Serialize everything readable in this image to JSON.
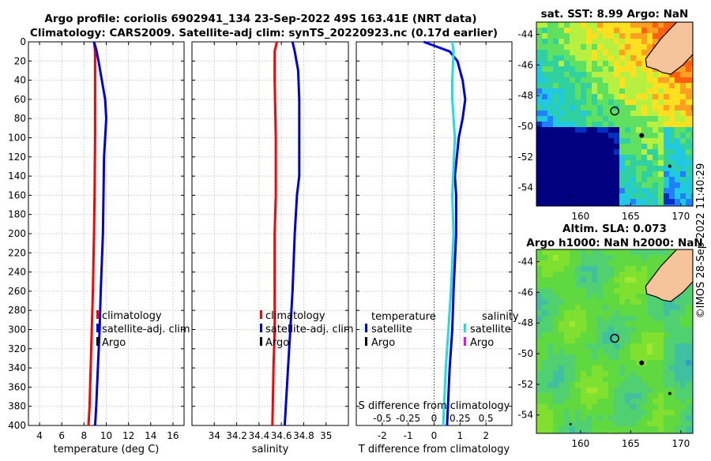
{
  "title_line1": "Argo profile: coriolis 6902941_134 23-Sep-2022 49S 163.41E (NRT data)",
  "title_line2": "Climatology: CARS2009. Satellite-adj clim: synTS_20220923.nc (0.17d earlier)",
  "copyright": "©IMOS 28-Sep-2022 11:40:29",
  "depth_ticks": [
    "0",
    "20",
    "40",
    "60",
    "80",
    "100",
    "120",
    "140",
    "160",
    "180",
    "200",
    "220",
    "240",
    "260",
    "280",
    "300",
    "320",
    "340",
    "360",
    "380",
    "400"
  ],
  "colors": {
    "climatology": "#ff0000",
    "satellite": "#0000dd",
    "argo": "#000000",
    "sal_satellite": "#22dddd",
    "sal_argo": "#ff00ff"
  },
  "chart_data": [
    {
      "type": "line",
      "id": "temperature",
      "xlabel": "temperature (deg C)",
      "xlim": [
        3,
        17
      ],
      "xticks": [
        "4",
        "6",
        "8",
        "10",
        "12",
        "14",
        "16"
      ],
      "xtick_values": [
        4,
        6,
        8,
        10,
        12,
        14,
        16
      ],
      "ylabel": "depth",
      "ylim": [
        0,
        400
      ],
      "legend": [
        "climatology",
        "satellite-adj. clim",
        "Argo"
      ],
      "series": [
        {
          "name": "climatology",
          "color": "#ff0000",
          "depth": [
            0,
            10,
            40,
            100,
            160,
            200,
            260,
            300,
            340,
            380,
            400
          ],
          "values": [
            8.9,
            9.0,
            9.0,
            9.0,
            8.95,
            8.9,
            8.8,
            8.7,
            8.6,
            8.5,
            8.4
          ]
        },
        {
          "name": "satellite-adj. clim",
          "color": "#0000dd",
          "depth": [
            0,
            8,
            20,
            40,
            60,
            80,
            100,
            120,
            160,
            200,
            260,
            300,
            340,
            380,
            400
          ],
          "values": [
            8.9,
            9.1,
            9.3,
            9.6,
            9.9,
            10.0,
            9.9,
            9.8,
            9.75,
            9.7,
            9.5,
            9.4,
            9.25,
            9.1,
            9.0
          ]
        }
      ]
    },
    {
      "type": "line",
      "id": "salinity",
      "xlabel": "salinity",
      "xlim": [
        33.8,
        35.2
      ],
      "xticks": [
        "34",
        "34.2",
        "34.4",
        "34.6",
        "34.8",
        "35"
      ],
      "xtick_values": [
        34,
        34.2,
        34.4,
        34.6,
        34.8,
        35
      ],
      "ylim": [
        0,
        400
      ],
      "legend": [
        "climatology",
        "satellite-adj. clim",
        "Argo"
      ],
      "series": [
        {
          "name": "climatology",
          "color": "#ff0000",
          "depth": [
            0,
            10,
            40,
            100,
            160,
            200,
            260,
            300,
            340,
            400
          ],
          "values": [
            34.56,
            34.54,
            34.54,
            34.55,
            34.55,
            34.54,
            34.54,
            34.54,
            34.53,
            34.52
          ]
        },
        {
          "name": "satellite-adj. clim",
          "color": "#0000dd",
          "depth": [
            0,
            10,
            30,
            60,
            100,
            140,
            160,
            200,
            260,
            300,
            340,
            380,
            400
          ],
          "values": [
            34.7,
            34.72,
            34.75,
            34.76,
            34.76,
            34.76,
            34.74,
            34.72,
            34.7,
            34.68,
            34.66,
            34.64,
            34.63
          ]
        }
      ]
    },
    {
      "type": "line",
      "id": "difference",
      "xlabel": "T difference from climatology",
      "xlabel_top": "S difference from climatology",
      "xlim": [
        -3,
        3
      ],
      "xticks": [
        "-2",
        "-1",
        "0",
        "1",
        "2"
      ],
      "xtick_values": [
        -2,
        -1,
        0,
        1,
        2
      ],
      "top_xticks": [
        "-0.5",
        "-0.25",
        "0",
        "0.25",
        "0.5"
      ],
      "top_xtick_values": [
        -2,
        -1,
        0,
        1,
        2
      ],
      "ylim": [
        0,
        400
      ],
      "legend_t_title": "temperature",
      "legend_s_title": "salinity",
      "legend_t": [
        "satellite",
        "Argo"
      ],
      "legend_s": [
        "satellite",
        "Argo"
      ],
      "series": [
        {
          "name": "T satellite",
          "color": "#0000dd",
          "depth": [
            0,
            5,
            10,
            20,
            40,
            60,
            80,
            100,
            140,
            160,
            200,
            260,
            300,
            340,
            400
          ],
          "values": [
            -0.4,
            0.1,
            0.6,
            0.9,
            1.1,
            1.2,
            1.1,
            0.95,
            0.8,
            0.85,
            0.85,
            0.75,
            0.7,
            0.6,
            0.5
          ]
        },
        {
          "name": "S satellite",
          "color": "#22dddd",
          "depth": [
            0,
            10,
            40,
            60,
            100,
            160,
            200,
            260,
            300,
            340,
            400
          ],
          "values": [
            0.7,
            0.75,
            0.7,
            0.7,
            0.8,
            0.7,
            0.75,
            0.65,
            0.55,
            0.45,
            0.35
          ]
        }
      ]
    },
    {
      "type": "heatmap",
      "id": "sst_map",
      "title": "sat. SST: 8.99 Argo: NaN",
      "xticks": [
        "160",
        "165",
        "170"
      ],
      "xtick_values": [
        160,
        165,
        170
      ],
      "yticks": [
        "-44",
        "-46",
        "-48",
        "-50",
        "-52",
        "-54"
      ],
      "ytick_values": [
        -44,
        -46,
        -48,
        -50,
        -52,
        -54
      ],
      "xlim": [
        155.6,
        171.2
      ],
      "ylim": [
        -55.2,
        -43.2
      ],
      "profile_lon": 163.41,
      "profile_lat": -49
    },
    {
      "type": "heatmap",
      "id": "sla_map",
      "title1": "Altim. SLA: 0.073",
      "title2": "Argo h1000: NaN h2000: NaN",
      "xticks": [
        "160",
        "165",
        "170"
      ],
      "xtick_values": [
        160,
        165,
        170
      ],
      "yticks": [
        "-44",
        "-46",
        "-48",
        "-50",
        "-52",
        "-54"
      ],
      "ytick_values": [
        -44,
        -46,
        -48,
        -50,
        -52,
        -54
      ],
      "xlim": [
        155.6,
        171.2
      ],
      "ylim": [
        -55.2,
        -43.2
      ],
      "profile_lon": 163.41,
      "profile_lat": -49
    }
  ]
}
